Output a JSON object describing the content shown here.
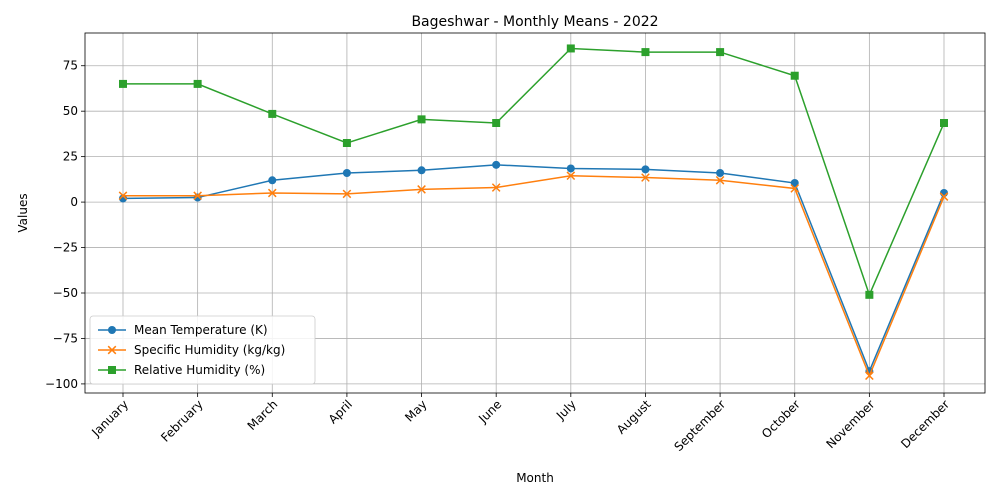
{
  "chart_data": {
    "type": "line",
    "title": "Bageshwar - Monthly Means - 2022",
    "xlabel": "Month",
    "ylabel": "Values",
    "categories": [
      "January",
      "February",
      "March",
      "April",
      "May",
      "June",
      "July",
      "August",
      "September",
      "October",
      "November",
      "December"
    ],
    "ylim": [
      -105,
      93
    ],
    "yticks": [
      -100,
      -75,
      -50,
      -25,
      0,
      25,
      50,
      75
    ],
    "grid": true,
    "legend_position": "lower-left",
    "series": [
      {
        "name": "Mean Temperature (K)",
        "color": "#1f77b4",
        "marker": "circle",
        "values": [
          2.0,
          2.5,
          12.0,
          16.0,
          17.5,
          20.5,
          18.5,
          18.0,
          16.0,
          10.5,
          -93.0,
          5.0
        ]
      },
      {
        "name": "Specific Humidity (kg/kg)",
        "color": "#ff7f0e",
        "marker": "x",
        "values": [
          3.5,
          3.5,
          5.0,
          4.5,
          7.0,
          8.0,
          14.5,
          13.5,
          12.0,
          7.5,
          -95.5,
          3.0
        ]
      },
      {
        "name": "Relative Humidity (%)",
        "color": "#2ca02c",
        "marker": "square",
        "values": [
          65.0,
          65.0,
          48.5,
          32.5,
          45.5,
          43.5,
          84.5,
          82.5,
          82.5,
          69.5,
          -51.0,
          43.5
        ]
      }
    ]
  }
}
